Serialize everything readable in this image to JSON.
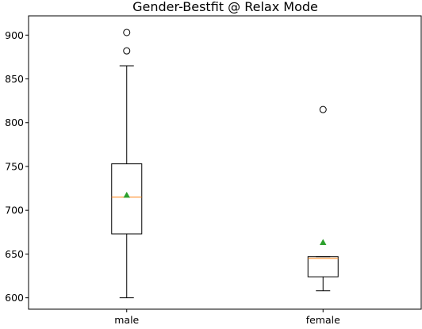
{
  "chart_data": {
    "type": "box",
    "title": "Gender-Bestfit @ Relax Mode",
    "xlabel": "",
    "ylabel": "",
    "categories": [
      "male",
      "female"
    ],
    "ylim": [
      587,
      922
    ],
    "yticks": [
      600,
      650,
      700,
      750,
      800,
      850,
      900
    ],
    "boxes": [
      {
        "name": "male",
        "whisker_low": 600,
        "q1": 673,
        "median": 715,
        "q3": 753,
        "whisker_high": 865,
        "mean": 717,
        "outliers": [
          882,
          903
        ]
      },
      {
        "name": "female",
        "whisker_low": 608,
        "q1": 624,
        "median": 645,
        "q3": 647,
        "whisker_high": 647,
        "mean": 663,
        "outliers": [
          815
        ]
      }
    ],
    "grid": false,
    "colors": {
      "box": "#000000",
      "median": "#ff7f0e",
      "mean": "#2ca02c",
      "outlier": "#000000"
    }
  }
}
